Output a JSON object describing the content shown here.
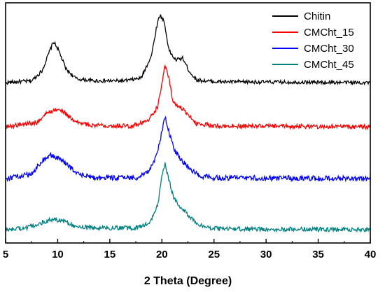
{
  "chart_data": {
    "type": "line",
    "title": "",
    "xlabel": "2 Theta (Degree)",
    "ylabel": "",
    "xlim": [
      5,
      40
    ],
    "x_ticks": [
      5,
      10,
      15,
      20,
      25,
      30,
      35,
      40
    ],
    "x_tick_labels": [
      "5",
      "10",
      "15",
      "20",
      "25",
      "30",
      "35",
      "40"
    ],
    "y_ticks_shown": false,
    "grid": false,
    "legend_position": "top-right",
    "legend": [
      "Chitin",
      "CMCht_15",
      "CMCht_30",
      "CMCht_45"
    ],
    "series": [
      {
        "name": "Chitin",
        "color": "#000000",
        "baseline": 0.25,
        "noise": 0.02,
        "points": [
          [
            5,
            0.25
          ],
          [
            7.5,
            0.27
          ],
          [
            8.5,
            0.38
          ],
          [
            9.3,
            0.62
          ],
          [
            9.6,
            0.7
          ],
          [
            10.0,
            0.63
          ],
          [
            10.8,
            0.4
          ],
          [
            11.8,
            0.29
          ],
          [
            13.5,
            0.27
          ],
          [
            16.5,
            0.27
          ],
          [
            18.0,
            0.3
          ],
          [
            19.0,
            0.55
          ],
          [
            19.5,
            0.87
          ],
          [
            19.8,
            1.0
          ],
          [
            20.2,
            0.93
          ],
          [
            20.7,
            0.6
          ],
          [
            21.3,
            0.5
          ],
          [
            22.0,
            0.52
          ],
          [
            22.6,
            0.38
          ],
          [
            23.3,
            0.28
          ],
          [
            25,
            0.26
          ],
          [
            40,
            0.25
          ]
        ]
      },
      {
        "name": "CMCht_15",
        "color": "#ff0000",
        "baseline": 0.25,
        "noise": 0.025,
        "points": [
          [
            5,
            0.25
          ],
          [
            8.0,
            0.3
          ],
          [
            9.0,
            0.41
          ],
          [
            9.8,
            0.45
          ],
          [
            10.6,
            0.42
          ],
          [
            11.6,
            0.31
          ],
          [
            13,
            0.27
          ],
          [
            17,
            0.26
          ],
          [
            18.6,
            0.31
          ],
          [
            19.6,
            0.48
          ],
          [
            20.0,
            0.74
          ],
          [
            20.3,
            0.97
          ],
          [
            20.7,
            0.79
          ],
          [
            21.1,
            0.52
          ],
          [
            21.8,
            0.48
          ],
          [
            22.5,
            0.38
          ],
          [
            23.3,
            0.29
          ],
          [
            25,
            0.26
          ],
          [
            40,
            0.25
          ]
        ]
      },
      {
        "name": "CMCht_30",
        "color": "#0000ff",
        "baseline": 0.25,
        "noise": 0.03,
        "points": [
          [
            5,
            0.25
          ],
          [
            7.5,
            0.3
          ],
          [
            8.5,
            0.46
          ],
          [
            9.3,
            0.52
          ],
          [
            10.2,
            0.48
          ],
          [
            11.0,
            0.4
          ],
          [
            12.0,
            0.3
          ],
          [
            13.5,
            0.26
          ],
          [
            17.5,
            0.26
          ],
          [
            18.7,
            0.33
          ],
          [
            19.5,
            0.52
          ],
          [
            20.0,
            0.79
          ],
          [
            20.3,
            0.97
          ],
          [
            20.7,
            0.78
          ],
          [
            21.2,
            0.58
          ],
          [
            22.0,
            0.45
          ],
          [
            22.8,
            0.35
          ],
          [
            23.6,
            0.28
          ],
          [
            25,
            0.26
          ],
          [
            40,
            0.25
          ]
        ]
      },
      {
        "name": "CMCht_45",
        "color": "#008080",
        "baseline": 0.25,
        "noise": 0.025,
        "points": [
          [
            5,
            0.25
          ],
          [
            7.0,
            0.27
          ],
          [
            8.5,
            0.33
          ],
          [
            9.5,
            0.37
          ],
          [
            10.5,
            0.35
          ],
          [
            11.5,
            0.3
          ],
          [
            13,
            0.27
          ],
          [
            17.5,
            0.27
          ],
          [
            18.8,
            0.32
          ],
          [
            19.6,
            0.52
          ],
          [
            20.0,
            0.86
          ],
          [
            20.3,
            1.0
          ],
          [
            20.7,
            0.8
          ],
          [
            21.1,
            0.62
          ],
          [
            21.8,
            0.5
          ],
          [
            22.6,
            0.41
          ],
          [
            23.5,
            0.31
          ],
          [
            24.5,
            0.27
          ],
          [
            25.5,
            0.26
          ],
          [
            40,
            0.25
          ]
        ]
      }
    ]
  }
}
